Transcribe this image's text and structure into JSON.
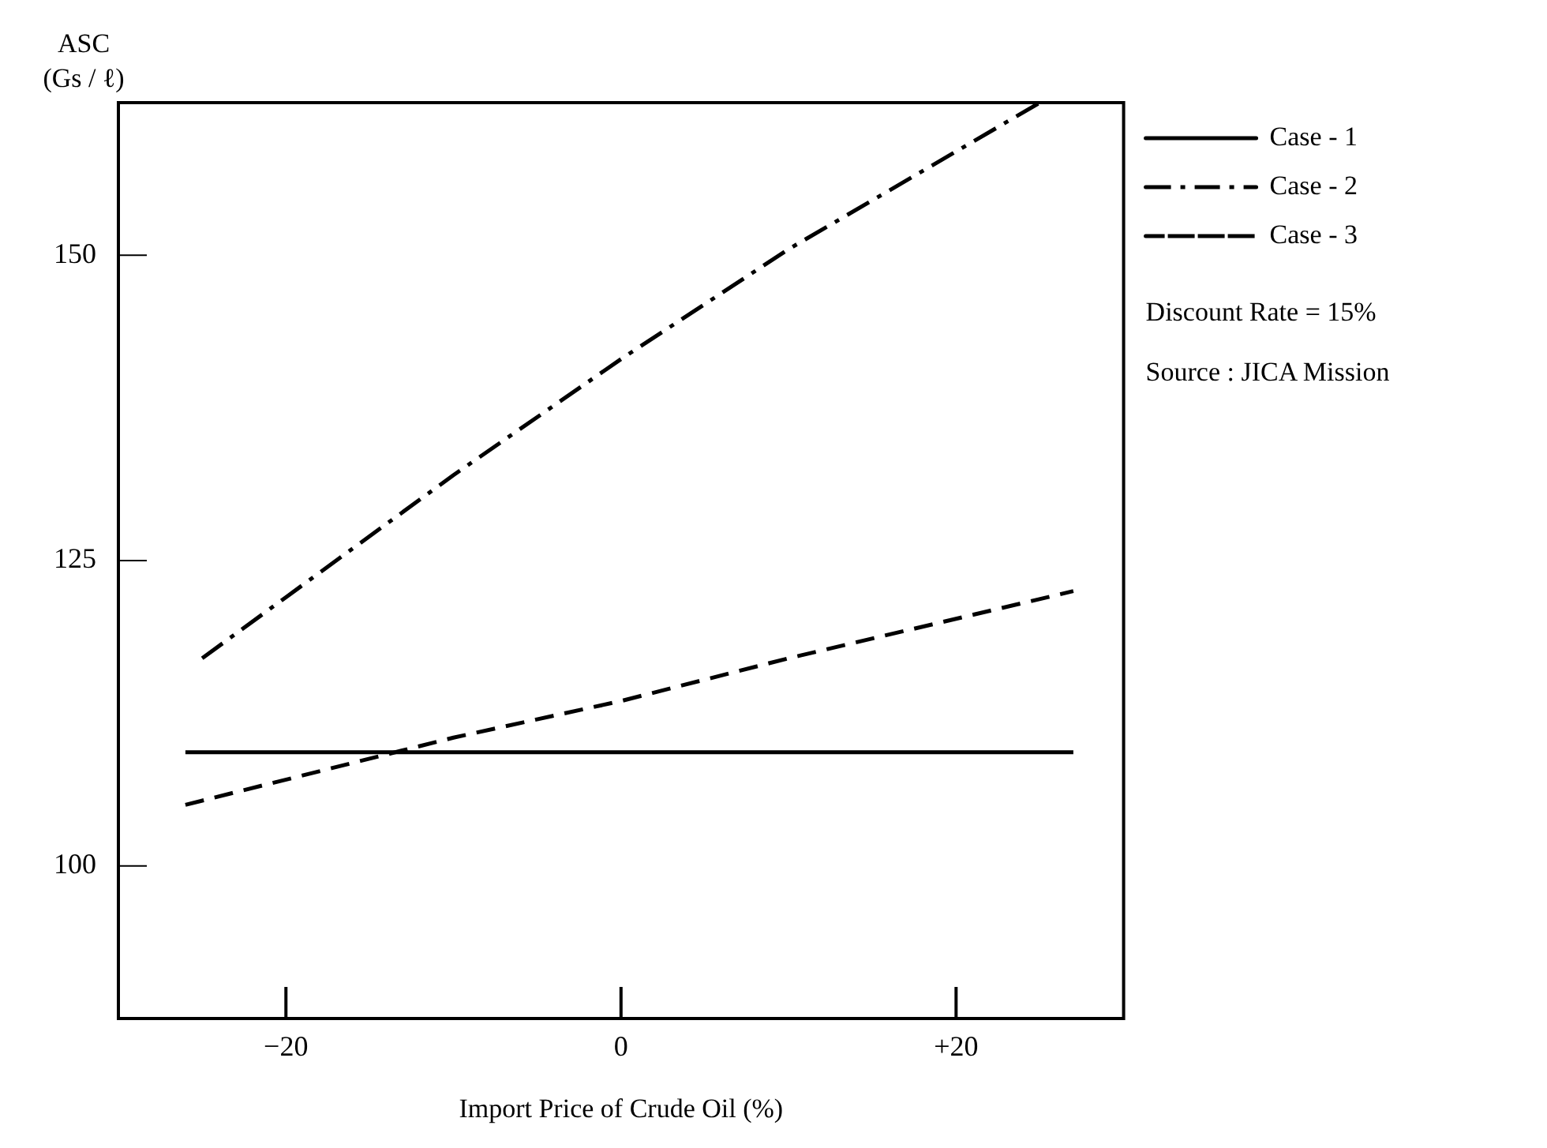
{
  "chart_data": {
    "type": "line",
    "xlabel": "Import Price of Crude Oil (%)",
    "ylabel": "ASC (Gs / ℓ)",
    "xlim": [
      -30,
      30
    ],
    "xticks": [
      {
        "value": -20,
        "label": "−20"
      },
      0,
      {
        "value": 20,
        "label": "+20"
      }
    ],
    "ylim": [
      87.5,
      162.5
    ],
    "yticks": [
      100,
      125,
      150
    ],
    "grid": false,
    "legend": "right",
    "marker": "none",
    "annotations": [
      "Discount Rate = 15%",
      "Source : JICA Mission"
    ],
    "series": [
      {
        "name": "Case - 1",
        "color": "#000000",
        "line_style": "solid",
        "x": [
          -26,
          27
        ],
        "values": [
          109.3,
          109.3
        ]
      },
      {
        "name": "Case - 2",
        "color": "#000000",
        "line_style": "dashdot",
        "x": [
          -25,
          -20,
          -10,
          0,
          10,
          20,
          25
        ],
        "values": [
          117,
          122,
          132,
          141.5,
          150.5,
          158.5,
          162.5
        ]
      },
      {
        "name": "Case - 3",
        "color": "#000000",
        "line_style": "dashed",
        "x": [
          -26,
          -10,
          0,
          10,
          27
        ],
        "values": [
          105,
          110.5,
          113.5,
          117,
          122.5
        ]
      }
    ]
  }
}
